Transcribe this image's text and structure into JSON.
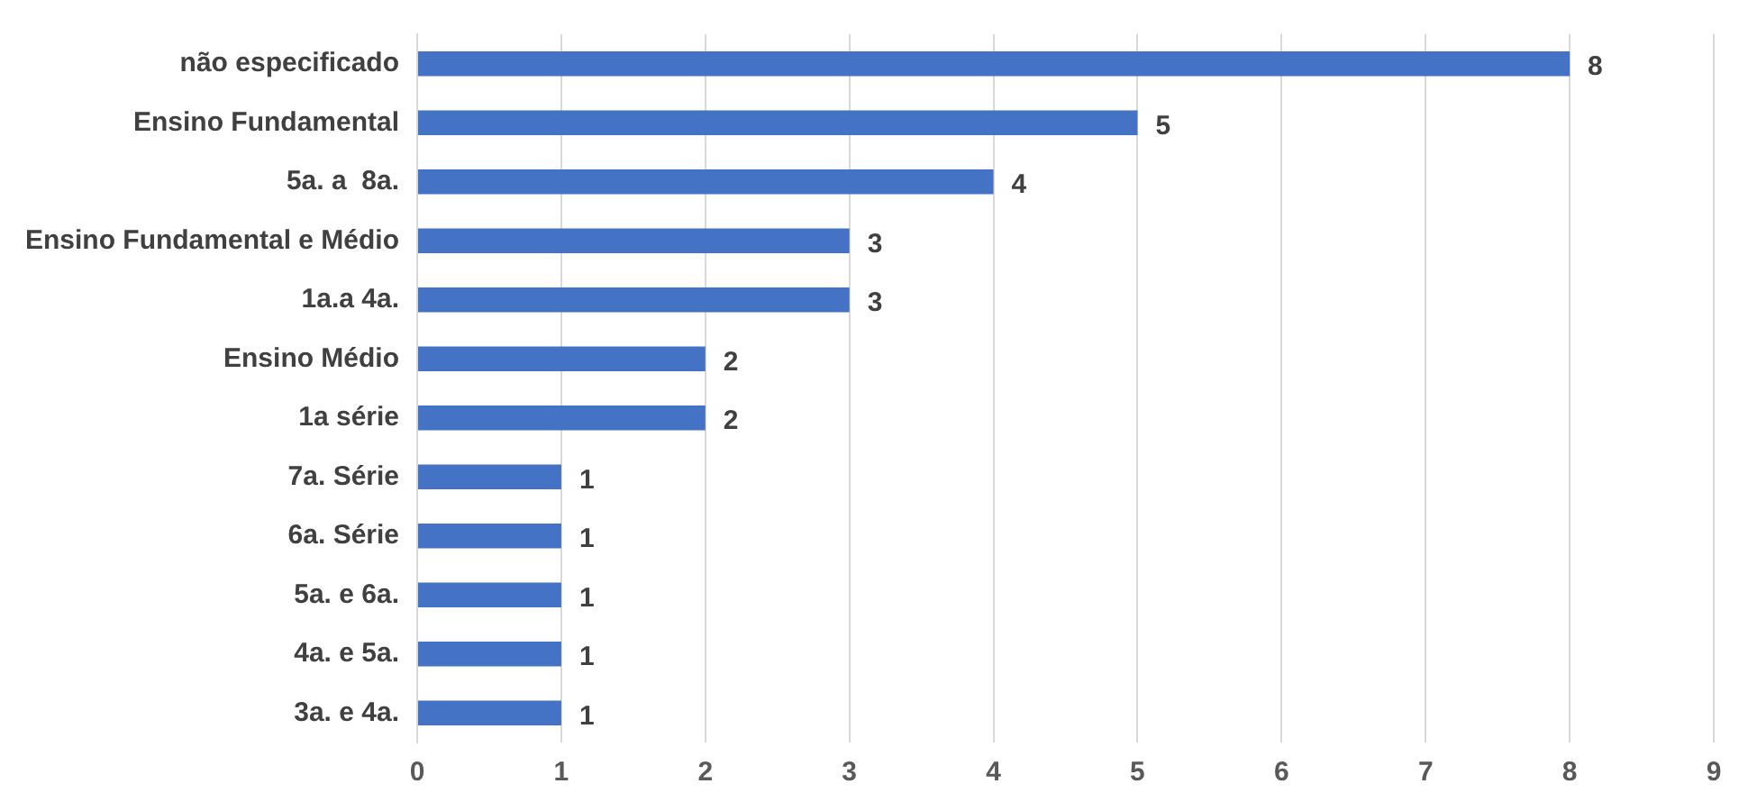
{
  "chart_data": {
    "type": "bar",
    "orientation": "horizontal",
    "categories": [
      "não especificado",
      "Ensino Fundamental",
      "5a. a  8a.",
      "Ensino Fundamental e Médio",
      "1a.a 4a.",
      "Ensino Médio",
      "1a série",
      "7a. Série",
      "6a. Série",
      "5a. e 6a.",
      "4a. e 5a.",
      "3a. e 4a."
    ],
    "values": [
      8,
      5,
      4,
      3,
      3,
      2,
      2,
      1,
      1,
      1,
      1,
      1
    ],
    "color": "#4472c4",
    "xlim": [
      0,
      9
    ],
    "xticks": [
      0,
      1,
      2,
      3,
      4,
      5,
      6,
      7,
      8,
      9
    ],
    "grid": "x",
    "data_labels": true,
    "legend": false
  }
}
